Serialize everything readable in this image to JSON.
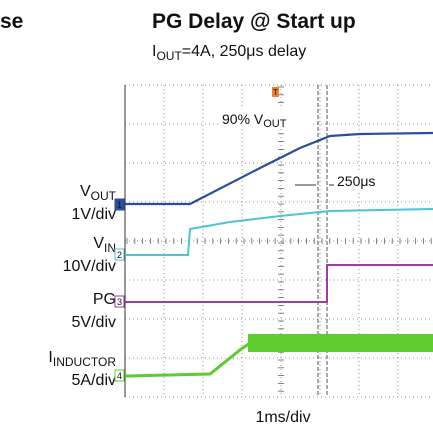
{
  "figure": {
    "cut_title": "se",
    "title": "PG Delay @ Start up",
    "subtitle": {
      "main": "I",
      "sub": "OUT",
      "rest": "=4A, 250μs delay"
    },
    "annotations": {
      "threshold": {
        "main": "90% V",
        "sub": "OUT"
      },
      "delay": "250μs"
    },
    "channels": [
      {
        "main": "V",
        "sub": "OUT",
        "scale": "1V/div",
        "marker": "1"
      },
      {
        "main": "V",
        "sub": "IN",
        "scale": "10V/div",
        "marker": "2"
      },
      {
        "main": "PG",
        "sub": "",
        "scale": "5V/div",
        "marker": "3"
      },
      {
        "main": "I",
        "sub": "INDUCTOR",
        "scale": "5A/div",
        "marker": "4"
      }
    ],
    "trigger": "T",
    "timebase": "1ms/div"
  }
}
